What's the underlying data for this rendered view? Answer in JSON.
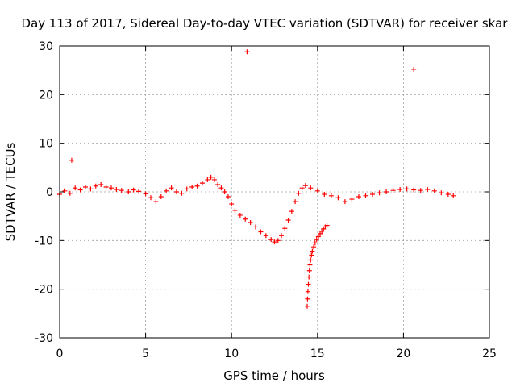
{
  "chart_data": {
    "type": "scatter",
    "title": "Day 113 of 2017, Sidereal Day-to-day VTEC variation (SDTVAR) for receiver skar",
    "xlabel": "GPS time / hours",
    "ylabel": "SDTVAR / TECUs",
    "xlim": [
      0,
      25
    ],
    "ylim": [
      -30,
      30
    ],
    "xticks": [
      0,
      5,
      10,
      15,
      20,
      25
    ],
    "yticks": [
      -30,
      -20,
      -10,
      0,
      10,
      20,
      30
    ],
    "grid": true,
    "marker": "plus",
    "marker_color": "#ff0000",
    "series": [
      {
        "name": "SDTVAR",
        "points": [
          [
            0.0,
            -0.5
          ],
          [
            0.3,
            0.2
          ],
          [
            0.6,
            -0.3
          ],
          [
            0.9,
            0.8
          ],
          [
            1.2,
            0.4
          ],
          [
            1.5,
            1.0
          ],
          [
            1.8,
            0.6
          ],
          [
            2.1,
            1.2
          ],
          [
            2.4,
            1.5
          ],
          [
            2.7,
            1.0
          ],
          [
            3.0,
            0.8
          ],
          [
            3.3,
            0.5
          ],
          [
            3.6,
            0.3
          ],
          [
            4.0,
            0.0
          ],
          [
            4.3,
            0.4
          ],
          [
            4.6,
            0.1
          ],
          [
            5.0,
            -0.4
          ],
          [
            5.3,
            -1.2
          ],
          [
            5.6,
            -2.0
          ],
          [
            5.9,
            -1.0
          ],
          [
            6.2,
            0.2
          ],
          [
            6.5,
            0.8
          ],
          [
            6.8,
            0.0
          ],
          [
            7.1,
            -0.3
          ],
          [
            7.4,
            0.6
          ],
          [
            7.7,
            1.0
          ],
          [
            8.0,
            1.2
          ],
          [
            8.3,
            1.8
          ],
          [
            8.6,
            2.5
          ],
          [
            8.8,
            3.0
          ],
          [
            9.0,
            2.5
          ],
          [
            9.2,
            1.5
          ],
          [
            9.4,
            0.8
          ],
          [
            9.6,
            0.0
          ],
          [
            9.8,
            -1.0
          ],
          [
            10.0,
            -2.5
          ],
          [
            10.2,
            -3.8
          ],
          [
            10.5,
            -4.8
          ],
          [
            10.8,
            -5.6
          ],
          [
            11.1,
            -6.3
          ],
          [
            11.4,
            -7.2
          ],
          [
            11.7,
            -8.2
          ],
          [
            12.0,
            -9.0
          ],
          [
            12.3,
            -9.8
          ],
          [
            12.5,
            -10.3
          ],
          [
            12.7,
            -10.0
          ],
          [
            12.9,
            -9.0
          ],
          [
            13.1,
            -7.5
          ],
          [
            13.3,
            -5.8
          ],
          [
            13.5,
            -4.0
          ],
          [
            13.7,
            -2.0
          ],
          [
            13.9,
            -0.3
          ],
          [
            14.1,
            0.8
          ],
          [
            14.3,
            1.3
          ],
          [
            14.6,
            0.8
          ],
          [
            15.0,
            0.2
          ],
          [
            15.4,
            -0.5
          ],
          [
            15.8,
            -0.8
          ],
          [
            16.2,
            -1.2
          ],
          [
            16.6,
            -2.0
          ],
          [
            17.0,
            -1.5
          ],
          [
            17.4,
            -1.0
          ],
          [
            17.8,
            -0.8
          ],
          [
            18.2,
            -0.5
          ],
          [
            18.6,
            -0.2
          ],
          [
            19.0,
            0.0
          ],
          [
            19.4,
            0.3
          ],
          [
            19.8,
            0.5
          ],
          [
            20.2,
            0.6
          ],
          [
            20.6,
            0.4
          ],
          [
            21.0,
            0.3
          ],
          [
            21.4,
            0.5
          ],
          [
            21.8,
            0.2
          ],
          [
            22.2,
            -0.2
          ],
          [
            22.6,
            -0.5
          ],
          [
            22.9,
            -0.8
          ],
          [
            14.4,
            -23.5
          ],
          [
            14.42,
            -22.0
          ],
          [
            14.44,
            -20.5
          ],
          [
            14.47,
            -19.0
          ],
          [
            14.5,
            -17.5
          ],
          [
            14.53,
            -16.2
          ],
          [
            14.56,
            -15.0
          ],
          [
            14.6,
            -14.0
          ],
          [
            14.65,
            -13.0
          ],
          [
            14.7,
            -12.2
          ],
          [
            14.78,
            -11.3
          ],
          [
            14.86,
            -10.5
          ],
          [
            14.95,
            -9.8
          ],
          [
            15.05,
            -9.2
          ],
          [
            15.15,
            -8.6
          ],
          [
            15.25,
            -8.1
          ],
          [
            15.35,
            -7.6
          ],
          [
            15.45,
            -7.2
          ],
          [
            15.55,
            -6.9
          ],
          [
            0.7,
            6.5
          ],
          [
            10.9,
            28.8
          ],
          [
            20.6,
            25.2
          ]
        ]
      }
    ]
  }
}
